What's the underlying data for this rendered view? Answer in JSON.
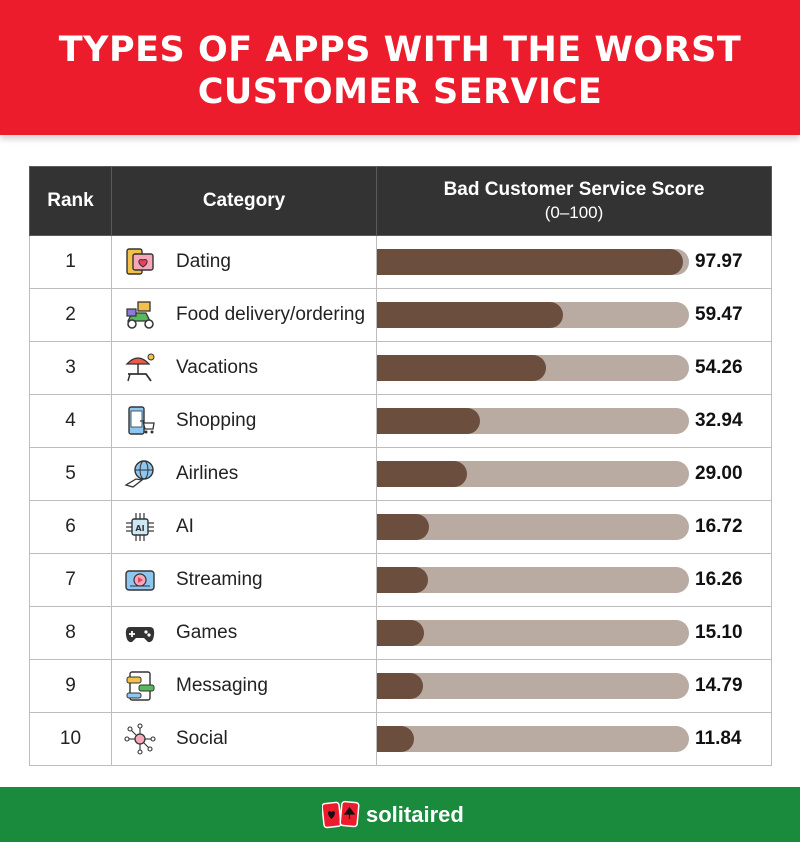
{
  "header": {
    "title_line1": "TYPES OF APPS WITH THE WORST",
    "title_line2": "CUSTOMER SERVICE"
  },
  "table": {
    "col_rank": "Rank",
    "col_category": "Category",
    "col_score": "Bad Customer Service Score",
    "col_score_sub": "(0–100)"
  },
  "chart_data": {
    "type": "bar",
    "title": "TYPES OF APPS WITH THE WORST CUSTOMER SERVICE",
    "ylabel": "Bad Customer Service Score (0–100)",
    "ylim": [
      0,
      100
    ],
    "rows": [
      {
        "rank": "1",
        "category": "Dating",
        "icon": "dating-icon",
        "value": 97.97,
        "label": "97.97"
      },
      {
        "rank": "2",
        "category": "Food delivery/ordering",
        "icon": "food-delivery-icon",
        "value": 59.47,
        "label": "59.47"
      },
      {
        "rank": "3",
        "category": "Vacations",
        "icon": "vacations-icon",
        "value": 54.26,
        "label": "54.26"
      },
      {
        "rank": "4",
        "category": "Shopping",
        "icon": "shopping-icon",
        "value": 32.94,
        "label": "32.94"
      },
      {
        "rank": "5",
        "category": "Airlines",
        "icon": "airlines-icon",
        "value": 29.0,
        "label": "29.00"
      },
      {
        "rank": "6",
        "category": "AI",
        "icon": "ai-chip-icon",
        "value": 16.72,
        "label": "16.72"
      },
      {
        "rank": "7",
        "category": "Streaming",
        "icon": "streaming-icon",
        "value": 16.26,
        "label": "16.26"
      },
      {
        "rank": "8",
        "category": "Games",
        "icon": "gamepad-icon",
        "value": 15.1,
        "label": "15.10"
      },
      {
        "rank": "9",
        "category": "Messaging",
        "icon": "messaging-icon",
        "value": 14.79,
        "label": "14.79"
      },
      {
        "rank": "10",
        "category": "Social",
        "icon": "social-network-icon",
        "value": 11.84,
        "label": "11.84"
      }
    ]
  },
  "colors": {
    "header_bg": "#ec1c2d",
    "table_header_bg": "#333333",
    "bar_fill": "#6b4e3d",
    "bar_track": "#b9aba1",
    "footer_bg": "#1a8a3d"
  },
  "footer": {
    "brand": "solitaired",
    "logo_icon": "playing-cards-logo-icon"
  }
}
